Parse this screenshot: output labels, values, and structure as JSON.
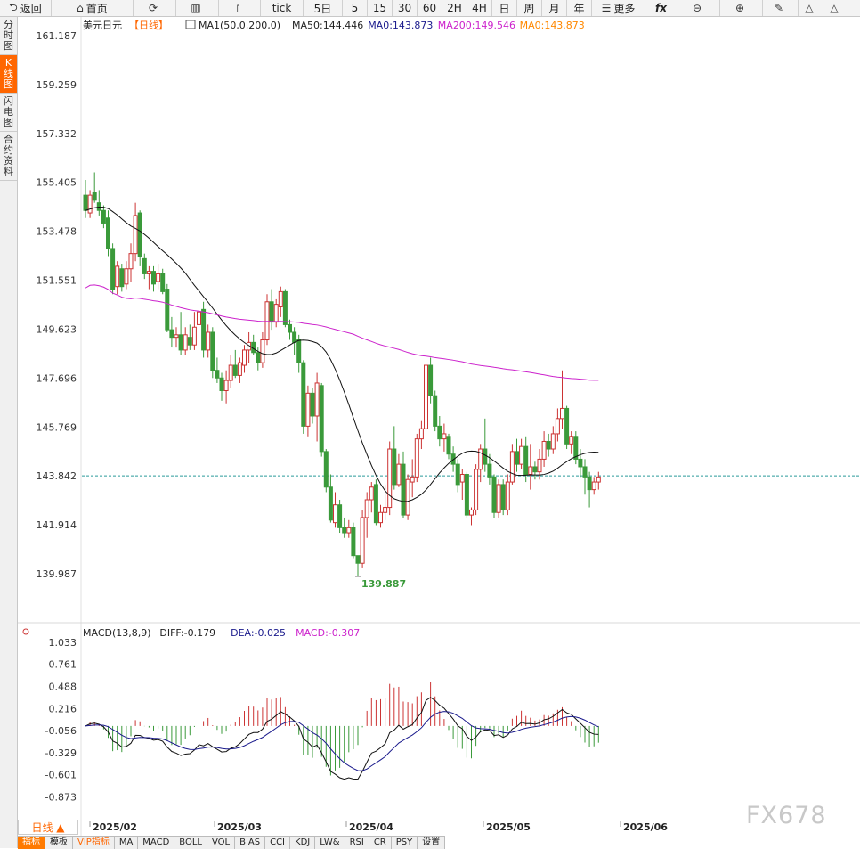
{
  "toolbar": [
    {
      "icon": "back-icon",
      "glyph": "⮌",
      "label": "返回",
      "w": 58
    },
    {
      "icon": "home-icon",
      "glyph": "⌂",
      "label": "首页",
      "w": 92
    },
    {
      "icon": "refresh-icon",
      "glyph": "⟳",
      "label": "",
      "w": 48
    },
    {
      "icon": "bar-chart-icon",
      "glyph": "▥",
      "label": "",
      "w": 48
    },
    {
      "icon": "candle-icon",
      "glyph": "⫾",
      "label": "",
      "w": 47
    },
    {
      "icon": "",
      "glyph": "",
      "label": "tick",
      "w": 48
    },
    {
      "icon": "",
      "glyph": "",
      "label": "5日",
      "w": 44
    },
    {
      "icon": "",
      "glyph": "",
      "label": "5",
      "w": 28
    },
    {
      "icon": "",
      "glyph": "",
      "label": "15",
      "w": 28
    },
    {
      "icon": "",
      "glyph": "",
      "label": "30",
      "w": 28
    },
    {
      "icon": "",
      "glyph": "",
      "label": "60",
      "w": 28
    },
    {
      "icon": "",
      "glyph": "",
      "label": "2H",
      "w": 28
    },
    {
      "icon": "",
      "glyph": "",
      "label": "4H",
      "w": 28
    },
    {
      "icon": "",
      "glyph": "",
      "label": "日",
      "w": 28
    },
    {
      "icon": "",
      "glyph": "",
      "label": "周",
      "w": 28
    },
    {
      "icon": "",
      "glyph": "",
      "label": "月",
      "w": 28
    },
    {
      "icon": "",
      "glyph": "",
      "label": "年",
      "w": 28
    },
    {
      "icon": "menu-icon",
      "glyph": "☰",
      "label": "更多",
      "w": 60
    },
    {
      "icon": "fx-icon",
      "glyph": "",
      "label": "fx",
      "w": 36
    },
    {
      "icon": "zoom-out-icon",
      "glyph": "⊖",
      "label": "",
      "w": 48
    },
    {
      "icon": "zoom-in-icon",
      "glyph": "⊕",
      "label": "",
      "w": 48
    },
    {
      "icon": "pen-icon",
      "glyph": "✎",
      "label": "",
      "w": 40
    },
    {
      "icon": "triangle-icon",
      "glyph": "△",
      "label": "",
      "w": 28
    },
    {
      "icon": "triangle-icon",
      "glyph": "△",
      "label": "",
      "w": 28
    }
  ],
  "left_tabs": [
    {
      "label": "分时图",
      "active": false
    },
    {
      "label": "K线图",
      "active": true
    },
    {
      "label": "闪电图",
      "active": false
    },
    {
      "label": "合约资料",
      "active": false
    }
  ],
  "day_tab": "日线 ▲",
  "bottom_tabs": [
    {
      "label": "指标",
      "style": "active"
    },
    {
      "label": "模板",
      "style": ""
    },
    {
      "label": "VIP指标",
      "style": "vip"
    },
    {
      "label": "MA",
      "style": ""
    },
    {
      "label": "MACD",
      "style": ""
    },
    {
      "label": "BOLL",
      "style": ""
    },
    {
      "label": "VOL",
      "style": ""
    },
    {
      "label": "BIAS",
      "style": ""
    },
    {
      "label": "CCI",
      "style": ""
    },
    {
      "label": "KDJ",
      "style": ""
    },
    {
      "label": "LW&",
      "style": ""
    },
    {
      "label": "RSI",
      "style": ""
    },
    {
      "label": "CR",
      "style": ""
    },
    {
      "label": "PSY",
      "style": ""
    },
    {
      "label": "设置",
      "style": ""
    }
  ],
  "watermark": "FX678",
  "chart_data": {
    "type": "candlestick",
    "symbol": "美元日元",
    "period": "【日线】",
    "legend": [
      {
        "text": "MA1(50,0,200,0)",
        "color": "#222222"
      },
      {
        "text": "MA50:144.446",
        "color": "#222222"
      },
      {
        "text": "MA0:143.873",
        "color": "#1a1a8c"
      },
      {
        "text": "MA200:149.546",
        "color": "#cc22cc"
      },
      {
        "text": "MA0:143.873",
        "color": "#ff8800"
      }
    ],
    "y_ticks": [
      "161.187",
      "159.259",
      "157.332",
      "155.405",
      "153.478",
      "151.551",
      "149.623",
      "147.696",
      "145.769",
      "143.842",
      "141.914",
      "139.987"
    ],
    "ylim": [
      139.987,
      161.187
    ],
    "current_price": 143.842,
    "low_label": "139.887",
    "x_labels": [
      "2025/02",
      "2025/03",
      "2025/04",
      "2025/05",
      "2025/06"
    ],
    "colors": {
      "up": "#cc3333",
      "down": "#3a9a3a",
      "ma50": "#111111",
      "ma200": "#cc22cc",
      "dif": "#111111",
      "dea": "#1a1a8c"
    },
    "candles": [
      {
        "o": 154.9,
        "h": 155.5,
        "l": 154.0,
        "c": 154.3
      },
      {
        "o": 154.2,
        "h": 155.1,
        "l": 154.0,
        "c": 154.9
      },
      {
        "o": 155.0,
        "h": 155.8,
        "l": 154.6,
        "c": 154.7
      },
      {
        "o": 154.6,
        "h": 155.1,
        "l": 154.1,
        "c": 154.3
      },
      {
        "o": 154.3,
        "h": 154.5,
        "l": 153.6,
        "c": 153.8
      },
      {
        "o": 154.0,
        "h": 154.3,
        "l": 152.5,
        "c": 152.8
      },
      {
        "o": 152.8,
        "h": 153.0,
        "l": 151.0,
        "c": 151.2
      },
      {
        "o": 151.3,
        "h": 152.3,
        "l": 151.0,
        "c": 152.1
      },
      {
        "o": 152.0,
        "h": 152.2,
        "l": 151.1,
        "c": 151.3
      },
      {
        "o": 151.4,
        "h": 152.3,
        "l": 151.2,
        "c": 152.0
      },
      {
        "o": 152.0,
        "h": 153.0,
        "l": 151.5,
        "c": 152.6
      },
      {
        "o": 152.6,
        "h": 154.6,
        "l": 152.3,
        "c": 154.1
      },
      {
        "o": 154.2,
        "h": 154.3,
        "l": 152.1,
        "c": 152.5
      },
      {
        "o": 152.4,
        "h": 152.6,
        "l": 151.6,
        "c": 151.8
      },
      {
        "o": 151.8,
        "h": 152.1,
        "l": 151.2,
        "c": 151.9
      },
      {
        "o": 151.9,
        "h": 152.1,
        "l": 151.1,
        "c": 151.4
      },
      {
        "o": 151.5,
        "h": 152.2,
        "l": 151.2,
        "c": 151.8
      },
      {
        "o": 151.8,
        "h": 152.0,
        "l": 151.0,
        "c": 151.1
      },
      {
        "o": 151.2,
        "h": 151.4,
        "l": 149.5,
        "c": 149.6
      },
      {
        "o": 149.6,
        "h": 150.1,
        "l": 148.9,
        "c": 149.3
      },
      {
        "o": 149.3,
        "h": 149.7,
        "l": 148.9,
        "c": 149.4
      },
      {
        "o": 149.4,
        "h": 150.3,
        "l": 148.6,
        "c": 148.8
      },
      {
        "o": 148.8,
        "h": 149.7,
        "l": 148.6,
        "c": 149.4
      },
      {
        "o": 149.3,
        "h": 149.8,
        "l": 148.8,
        "c": 149.0
      },
      {
        "o": 149.0,
        "h": 150.3,
        "l": 148.8,
        "c": 149.7
      },
      {
        "o": 149.8,
        "h": 150.5,
        "l": 149.2,
        "c": 150.3
      },
      {
        "o": 150.4,
        "h": 150.7,
        "l": 148.5,
        "c": 148.8
      },
      {
        "o": 148.8,
        "h": 149.8,
        "l": 148.5,
        "c": 149.5
      },
      {
        "o": 149.5,
        "h": 149.7,
        "l": 147.7,
        "c": 148.0
      },
      {
        "o": 148.0,
        "h": 148.5,
        "l": 147.5,
        "c": 147.7
      },
      {
        "o": 147.7,
        "h": 147.9,
        "l": 146.8,
        "c": 147.2
      },
      {
        "o": 147.2,
        "h": 148.0,
        "l": 146.7,
        "c": 147.6
      },
      {
        "o": 147.6,
        "h": 148.6,
        "l": 147.3,
        "c": 148.2
      },
      {
        "o": 148.2,
        "h": 148.8,
        "l": 147.7,
        "c": 147.8
      },
      {
        "o": 147.8,
        "h": 148.5,
        "l": 147.5,
        "c": 148.3
      },
      {
        "o": 148.2,
        "h": 149.0,
        "l": 147.9,
        "c": 148.8
      },
      {
        "o": 148.8,
        "h": 149.5,
        "l": 148.3,
        "c": 149.1
      },
      {
        "o": 149.1,
        "h": 149.4,
        "l": 148.6,
        "c": 148.7
      },
      {
        "o": 148.7,
        "h": 148.9,
        "l": 148.0,
        "c": 148.3
      },
      {
        "o": 148.3,
        "h": 149.5,
        "l": 148.1,
        "c": 149.2
      },
      {
        "o": 149.2,
        "h": 151.0,
        "l": 149.0,
        "c": 150.7
      },
      {
        "o": 150.7,
        "h": 151.2,
        "l": 149.6,
        "c": 149.9
      },
      {
        "o": 149.9,
        "h": 150.8,
        "l": 149.7,
        "c": 150.6
      },
      {
        "o": 150.5,
        "h": 151.3,
        "l": 150.1,
        "c": 151.1
      },
      {
        "o": 151.1,
        "h": 151.2,
        "l": 149.7,
        "c": 149.8
      },
      {
        "o": 149.8,
        "h": 150.0,
        "l": 149.2,
        "c": 149.5
      },
      {
        "o": 149.5,
        "h": 149.7,
        "l": 148.6,
        "c": 149.1
      },
      {
        "o": 149.2,
        "h": 149.4,
        "l": 147.9,
        "c": 148.3
      },
      {
        "o": 148.3,
        "h": 148.4,
        "l": 145.5,
        "c": 145.8
      },
      {
        "o": 145.8,
        "h": 147.4,
        "l": 145.4,
        "c": 147.1
      },
      {
        "o": 147.1,
        "h": 147.3,
        "l": 145.9,
        "c": 146.2
      },
      {
        "o": 146.2,
        "h": 147.9,
        "l": 145.2,
        "c": 147.5
      },
      {
        "o": 147.4,
        "h": 147.5,
        "l": 144.6,
        "c": 144.8
      },
      {
        "o": 144.8,
        "h": 144.9,
        "l": 143.2,
        "c": 143.4
      },
      {
        "o": 143.4,
        "h": 143.9,
        "l": 142.0,
        "c": 142.1
      },
      {
        "o": 142.0,
        "h": 143.2,
        "l": 141.8,
        "c": 142.7
      },
      {
        "o": 142.7,
        "h": 142.9,
        "l": 141.6,
        "c": 141.8
      },
      {
        "o": 141.8,
        "h": 142.2,
        "l": 141.4,
        "c": 141.6
      },
      {
        "o": 141.6,
        "h": 142.1,
        "l": 141.4,
        "c": 141.8
      },
      {
        "o": 141.8,
        "h": 142.0,
        "l": 140.6,
        "c": 140.7
      },
      {
        "o": 140.7,
        "h": 140.7,
        "l": 139.887,
        "c": 140.4
      },
      {
        "o": 140.4,
        "h": 142.5,
        "l": 140.2,
        "c": 142.2
      },
      {
        "o": 142.2,
        "h": 143.2,
        "l": 141.4,
        "c": 142.9
      },
      {
        "o": 142.9,
        "h": 143.6,
        "l": 142.4,
        "c": 143.4
      },
      {
        "o": 143.5,
        "h": 143.7,
        "l": 141.9,
        "c": 142.0
      },
      {
        "o": 142.0,
        "h": 142.7,
        "l": 141.8,
        "c": 142.4
      },
      {
        "o": 142.4,
        "h": 143.5,
        "l": 142.1,
        "c": 142.6
      },
      {
        "o": 142.6,
        "h": 145.2,
        "l": 142.3,
        "c": 144.9
      },
      {
        "o": 144.9,
        "h": 145.8,
        "l": 143.3,
        "c": 143.5
      },
      {
        "o": 143.5,
        "h": 144.7,
        "l": 143.4,
        "c": 144.3
      },
      {
        "o": 144.3,
        "h": 144.8,
        "l": 142.2,
        "c": 142.3
      },
      {
        "o": 142.3,
        "h": 143.9,
        "l": 142.1,
        "c": 143.7
      },
      {
        "o": 143.6,
        "h": 144.5,
        "l": 143.0,
        "c": 143.8
      },
      {
        "o": 143.8,
        "h": 145.5,
        "l": 143.6,
        "c": 145.3
      },
      {
        "o": 145.3,
        "h": 146.0,
        "l": 144.9,
        "c": 145.7
      },
      {
        "o": 145.7,
        "h": 148.4,
        "l": 145.5,
        "c": 148.2
      },
      {
        "o": 148.2,
        "h": 148.5,
        "l": 146.7,
        "c": 147.0
      },
      {
        "o": 147.0,
        "h": 147.2,
        "l": 145.6,
        "c": 145.8
      },
      {
        "o": 145.8,
        "h": 146.2,
        "l": 145.0,
        "c": 145.3
      },
      {
        "o": 145.3,
        "h": 145.9,
        "l": 144.8,
        "c": 145.5
      },
      {
        "o": 145.4,
        "h": 145.5,
        "l": 144.5,
        "c": 144.7
      },
      {
        "o": 144.7,
        "h": 145.0,
        "l": 144.0,
        "c": 144.3
      },
      {
        "o": 144.3,
        "h": 144.5,
        "l": 143.2,
        "c": 143.5
      },
      {
        "o": 143.6,
        "h": 144.1,
        "l": 142.9,
        "c": 143.9
      },
      {
        "o": 143.9,
        "h": 144.0,
        "l": 142.2,
        "c": 142.3
      },
      {
        "o": 142.3,
        "h": 142.6,
        "l": 141.9,
        "c": 142.5
      },
      {
        "o": 142.5,
        "h": 144.3,
        "l": 142.3,
        "c": 144.1
      },
      {
        "o": 144.1,
        "h": 145.1,
        "l": 143.6,
        "c": 144.9
      },
      {
        "o": 144.9,
        "h": 146.1,
        "l": 144.0,
        "c": 144.3
      },
      {
        "o": 144.3,
        "h": 144.7,
        "l": 143.5,
        "c": 143.8
      },
      {
        "o": 143.8,
        "h": 143.9,
        "l": 142.2,
        "c": 142.4
      },
      {
        "o": 142.4,
        "h": 143.7,
        "l": 142.2,
        "c": 143.5
      },
      {
        "o": 143.5,
        "h": 143.7,
        "l": 142.3,
        "c": 142.5
      },
      {
        "o": 142.5,
        "h": 143.9,
        "l": 142.3,
        "c": 143.6
      },
      {
        "o": 143.6,
        "h": 145.1,
        "l": 143.5,
        "c": 144.8
      },
      {
        "o": 144.8,
        "h": 145.3,
        "l": 144.0,
        "c": 144.3
      },
      {
        "o": 144.3,
        "h": 145.3,
        "l": 144.1,
        "c": 145.0
      },
      {
        "o": 145.0,
        "h": 145.4,
        "l": 143.6,
        "c": 143.9
      },
      {
        "o": 143.9,
        "h": 145.1,
        "l": 143.3,
        "c": 144.2
      },
      {
        "o": 144.2,
        "h": 144.4,
        "l": 143.7,
        "c": 144.0
      },
      {
        "o": 144.0,
        "h": 144.9,
        "l": 143.7,
        "c": 144.5
      },
      {
        "o": 144.5,
        "h": 145.6,
        "l": 144.2,
        "c": 145.2
      },
      {
        "o": 145.2,
        "h": 145.5,
        "l": 144.6,
        "c": 144.9
      },
      {
        "o": 144.9,
        "h": 145.8,
        "l": 144.7,
        "c": 145.5
      },
      {
        "o": 145.5,
        "h": 146.5,
        "l": 145.2,
        "c": 146.1
      },
      {
        "o": 146.1,
        "h": 148.0,
        "l": 145.7,
        "c": 146.5
      },
      {
        "o": 146.5,
        "h": 146.6,
        "l": 144.9,
        "c": 145.1
      },
      {
        "o": 145.1,
        "h": 145.6,
        "l": 144.7,
        "c": 145.4
      },
      {
        "o": 145.4,
        "h": 145.6,
        "l": 144.3,
        "c": 144.5
      },
      {
        "o": 144.5,
        "h": 144.9,
        "l": 143.8,
        "c": 144.2
      },
      {
        "o": 144.2,
        "h": 144.5,
        "l": 143.1,
        "c": 143.8
      },
      {
        "o": 143.8,
        "h": 144.0,
        "l": 142.6,
        "c": 143.3
      },
      {
        "o": 143.3,
        "h": 143.8,
        "l": 143.1,
        "c": 143.6
      },
      {
        "o": 143.6,
        "h": 144.0,
        "l": 143.3,
        "c": 143.8
      }
    ],
    "macd": {
      "title": "MACD(13,8,9)",
      "diff": "DIFF:-0.179",
      "dea": "DEA:-0.025",
      "macd": "MACD:-0.307",
      "y_ticks": [
        "1.033",
        "0.761",
        "0.488",
        "0.216",
        "-0.056",
        "-0.329",
        "-0.601",
        "-0.873"
      ],
      "ylim": [
        -1.145,
        1.033
      ]
    }
  }
}
